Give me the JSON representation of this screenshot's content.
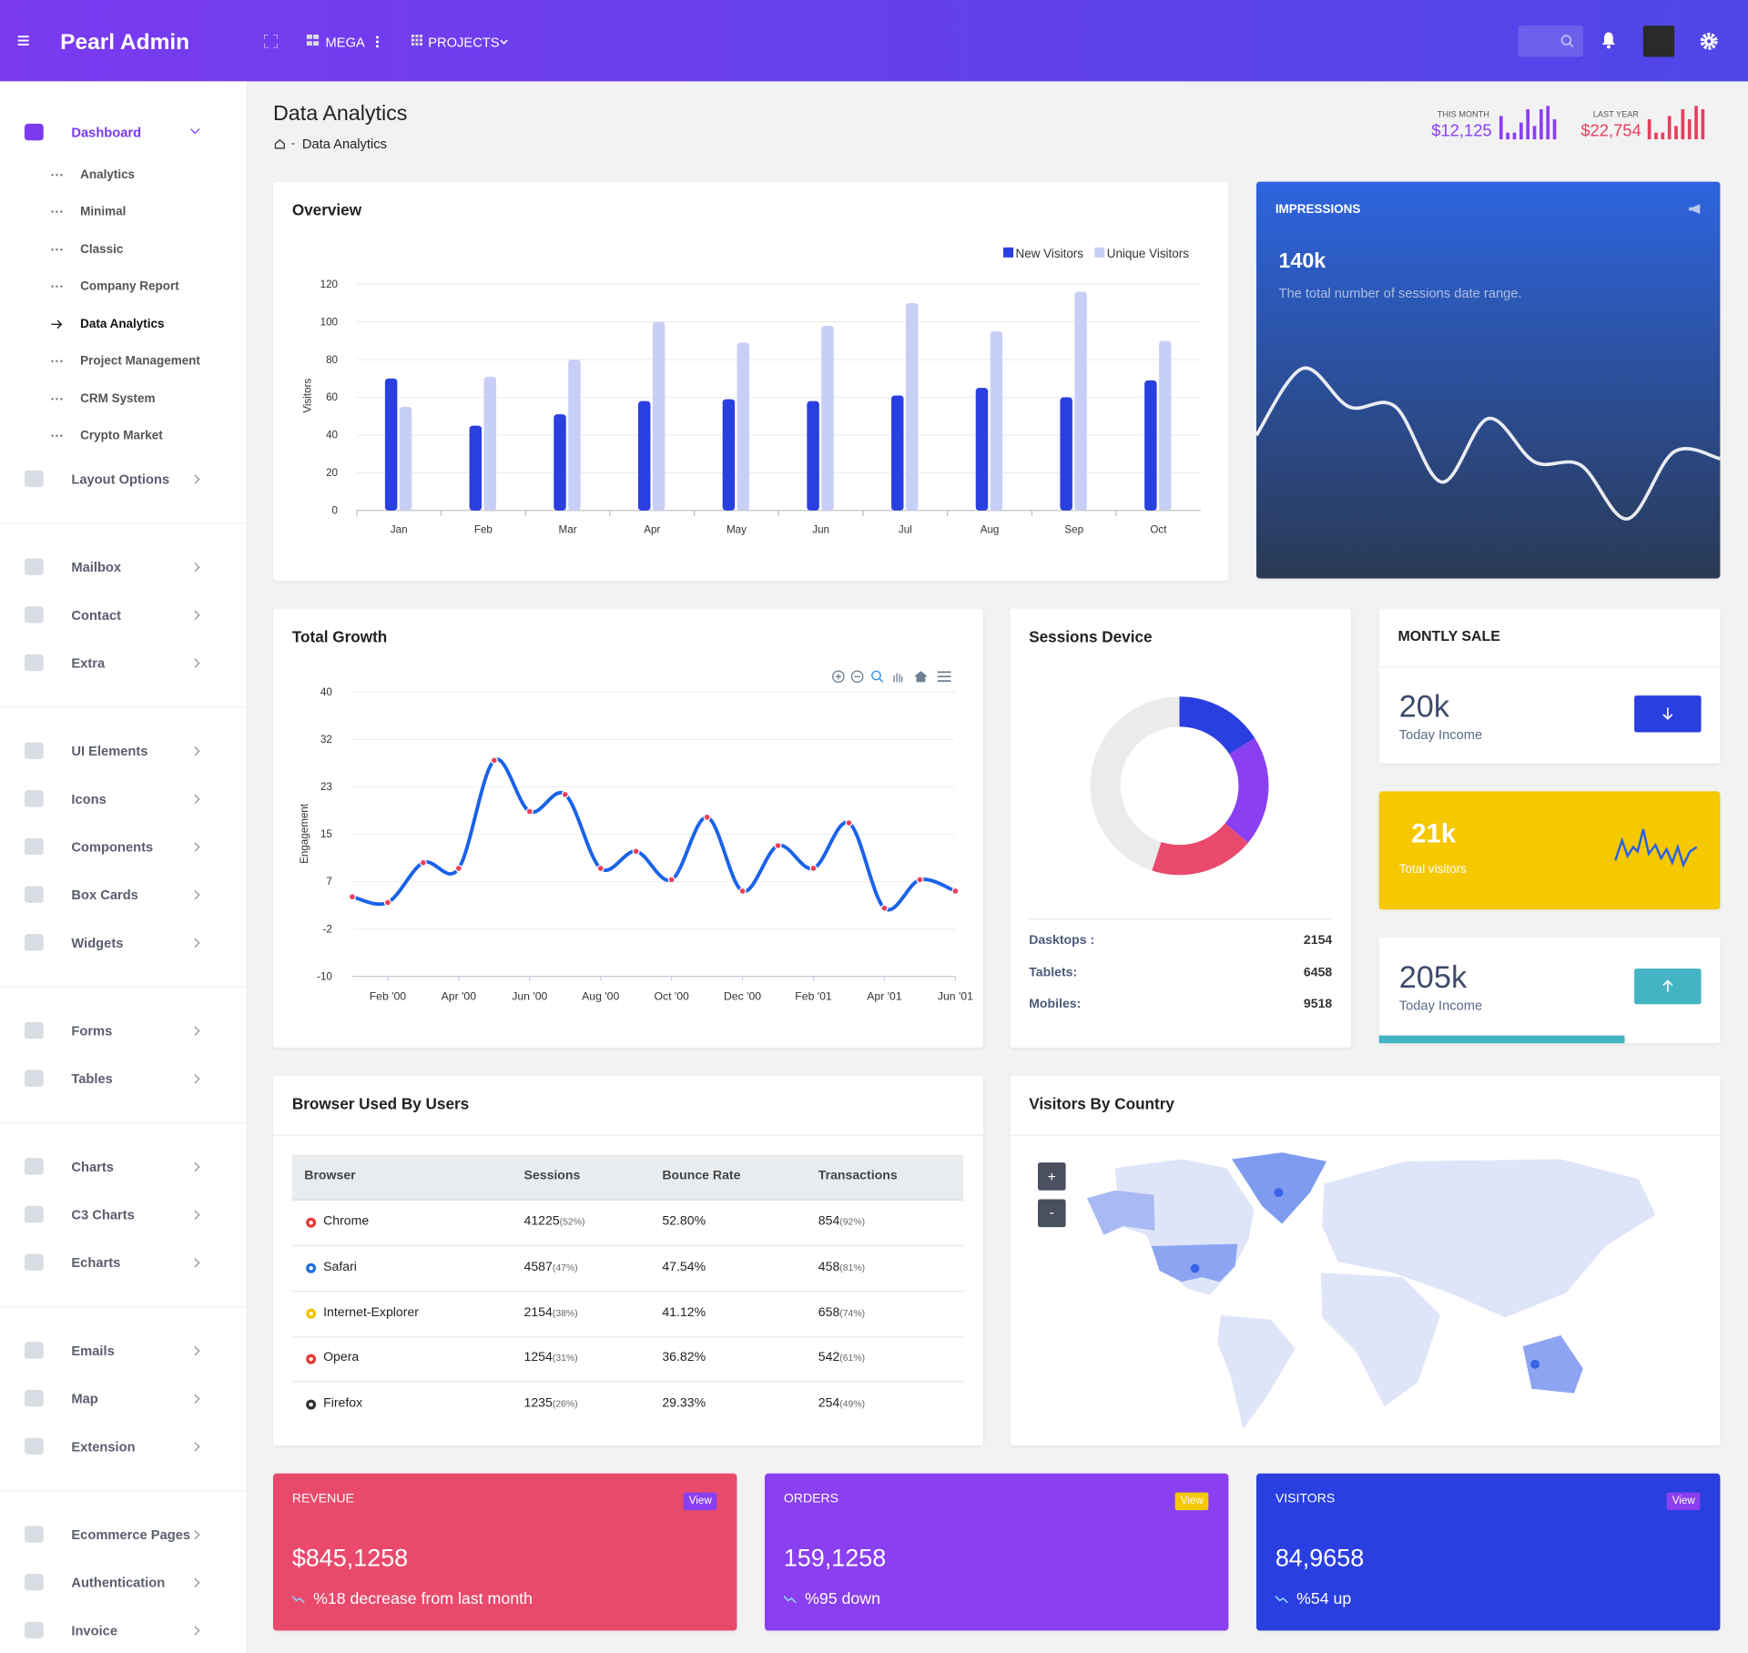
{
  "header": {
    "brand": "Pearl Admin",
    "nav": [
      "MEGA",
      "PROJECTS"
    ]
  },
  "sidebar": {
    "active_child": 4,
    "groups": [
      [
        {
          "label": "Dashboard",
          "children": [
            "Analytics",
            "Minimal",
            "Classic",
            "Company Report",
            "Data Analytics",
            "Project Management",
            "CRM System",
            "Crypto Market"
          ]
        },
        {
          "label": "Layout Options"
        }
      ],
      [
        {
          "label": "Mailbox"
        },
        {
          "label": "Contact"
        },
        {
          "label": "Extra"
        }
      ],
      [
        {
          "label": "UI Elements"
        },
        {
          "label": "Icons"
        },
        {
          "label": "Components"
        },
        {
          "label": "Box Cards"
        },
        {
          "label": "Widgets"
        }
      ],
      [
        {
          "label": "Forms"
        },
        {
          "label": "Tables"
        }
      ],
      [
        {
          "label": "Charts"
        },
        {
          "label": "C3 Charts"
        },
        {
          "label": "Echarts"
        }
      ],
      [
        {
          "label": "Emails"
        },
        {
          "label": "Map"
        },
        {
          "label": "Extension"
        }
      ],
      [
        {
          "label": "Ecommerce Pages"
        },
        {
          "label": "Authentication"
        },
        {
          "label": "Invoice"
        }
      ]
    ]
  },
  "page": {
    "title": "Data Analytics",
    "breadcrumb": "Data Analytics",
    "stats": [
      {
        "label": "THIS MONTH",
        "value": "$12,125",
        "color": "#8a3ff0",
        "bars": [
          7,
          2,
          2,
          5,
          9,
          4,
          9,
          10,
          6
        ],
        "ylim": [
          0,
          10
        ]
      },
      {
        "label": "LAST YEAR",
        "value": "$22,754",
        "color": "#e5405e",
        "bars": [
          6,
          2,
          2,
          7,
          4,
          9,
          6,
          10,
          9
        ],
        "ylim": [
          0,
          10
        ]
      }
    ]
  },
  "chart_data": [
    {
      "type": "bar",
      "title": "Overview",
      "ylabel": "Visitors",
      "categories": [
        "Jan",
        "Feb",
        "Mar",
        "Apr",
        "May",
        "Jun",
        "Jul",
        "Aug",
        "Sep",
        "Oct"
      ],
      "series": [
        {
          "name": "New Visitors",
          "color": "#2a3fe0",
          "values": [
            70,
            45,
            51,
            58,
            59,
            58,
            61,
            65,
            60,
            69
          ]
        },
        {
          "name": "Unique Visitors",
          "color": "#c8cff7",
          "values": [
            55,
            71,
            80,
            100,
            89,
            98,
            110,
            95,
            116,
            90
          ]
        }
      ],
      "ylim": [
        0,
        120
      ],
      "yticks": [
        0,
        20,
        40,
        60,
        80,
        100,
        120
      ],
      "grid": true
    },
    {
      "type": "line",
      "title": "IMPRESSIONS",
      "value": "140k",
      "description": "The total number of sessions date range.",
      "values": [
        53,
        93,
        70,
        70,
        25,
        63,
        37,
        35,
        3,
        43,
        39
      ],
      "ylim": [
        0,
        100
      ],
      "color": "#ffffff"
    },
    {
      "type": "line",
      "title": "Total Growth",
      "ylabel": "Engagement",
      "categories": [
        null,
        "Feb '00",
        null,
        "Apr '00",
        null,
        "Jun '00",
        null,
        "Aug '00",
        null,
        "Oct '00",
        null,
        "Dec '00",
        null,
        "Feb '01",
        null,
        "Apr '01",
        null,
        "Jun '01"
      ],
      "values": [
        4,
        3,
        10,
        9,
        28,
        19,
        22,
        9,
        12,
        7,
        18,
        5,
        13,
        9,
        17,
        2,
        7,
        5
      ],
      "ylim": [
        -10,
        40
      ],
      "yticks": [
        -10,
        {
          "value": -1.67,
          "label": "-2"
        },
        {
          "value": 6.67,
          "label": "7"
        },
        15,
        {
          "value": 23.33,
          "label": "23"
        },
        {
          "value": 31.67,
          "label": "32"
        },
        40
      ],
      "color": "#1a62e8",
      "point_color": "#e8405e",
      "grid": true
    },
    {
      "type": "pie",
      "title": "Sessions Device",
      "values": [
        16,
        20,
        19,
        45
      ],
      "colors": [
        "#2a3fe0",
        "#8a3ff0",
        "#e94a6c",
        "#ebebeb"
      ],
      "items": [
        {
          "label": "Dasktops :",
          "value": "2154"
        },
        {
          "label": "Tablets:",
          "value": "6458"
        },
        {
          "label": "Mobiles:",
          "value": "9518"
        }
      ]
    }
  ],
  "sale": {
    "title": "MONTLY SALE",
    "cards": [
      {
        "value": "20k",
        "label": "Today Income"
      },
      {
        "value": "21k",
        "label": "Total visitors"
      },
      {
        "value": "205k",
        "label": "Today Income",
        "progress": 72
      }
    ]
  },
  "browsers": {
    "title": "Browser Used By Users",
    "columns": [
      "Browser",
      "Sessions",
      "Bounce Rate",
      "Transactions"
    ],
    "rows": [
      {
        "browser": "Chrome",
        "sessions": "41225",
        "sessions_share": "(52%)",
        "bounce": "52.80%",
        "transactions": "854",
        "transactions_share": "(92%)",
        "color": "#e53935"
      },
      {
        "browser": "Safari",
        "sessions": "4587",
        "sessions_share": "(47%)",
        "bounce": "47.54%",
        "transactions": "458",
        "transactions_share": "(81%)",
        "color": "#1e6fe0"
      },
      {
        "browser": "Internet-Explorer",
        "sessions": "2154",
        "sessions_share": "(38%)",
        "bounce": "41.12%",
        "transactions": "658",
        "transactions_share": "(74%)",
        "color": "#f5c200"
      },
      {
        "browser": "Opera",
        "sessions": "1254",
        "sessions_share": "(31%)",
        "bounce": "36.82%",
        "transactions": "542",
        "transactions_share": "(61%)",
        "color": "#e53935"
      },
      {
        "browser": "Firefox",
        "sessions": "1235",
        "sessions_share": "(26%)",
        "bounce": "29.33%",
        "transactions": "254",
        "transactions_share": "(49%)",
        "color": "#333333"
      }
    ]
  },
  "countries": {
    "title": "Visitors By Country",
    "zoom": [
      "+",
      "-"
    ]
  },
  "summary": [
    {
      "title": "REVENUE",
      "value": "$845,1258",
      "note": "%18 decrease from last month",
      "action": "View",
      "color": "#e94a6c",
      "badge": "#8a3ff0"
    },
    {
      "title": "ORDERS",
      "value": "159,1258",
      "note": "%95 down",
      "action": "View",
      "color": "#8a3ff0",
      "badge": "#f5c800"
    },
    {
      "title": "VISITORS",
      "value": "84,9658",
      "note": "%54 up",
      "action": "View",
      "color": "#2a3fe0",
      "badge": "#8a3ff0"
    }
  ]
}
